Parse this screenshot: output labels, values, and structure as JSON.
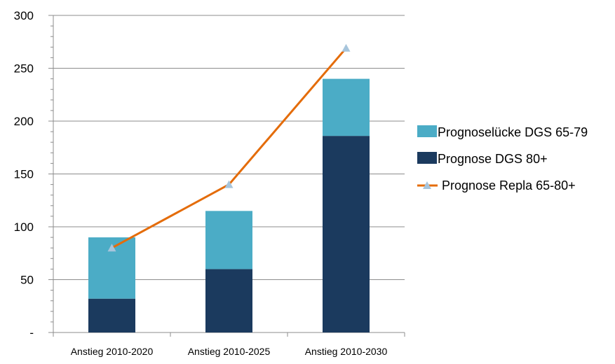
{
  "chart_data": {
    "type": "bar",
    "categories": [
      "Anstieg 2010-2020",
      "Anstieg 2010-2025",
      "Anstieg 2010-2030"
    ],
    "series": [
      {
        "name": "Prognose DGS 80+",
        "kind": "stacked-bar",
        "color": "#1b3a5e",
        "values": [
          32,
          60,
          186
        ]
      },
      {
        "name": "Prognoselücke DGS 65-79",
        "kind": "stacked-bar",
        "color": "#4bacc6",
        "values": [
          58,
          55,
          54
        ]
      },
      {
        "name": "Prognose Repla 65-80+",
        "kind": "line",
        "color": "#e46c0a",
        "marker_color": "#a7c5dc",
        "marker": "triangle",
        "values": [
          80,
          140,
          269
        ]
      }
    ],
    "legend_order": [
      "Prognoselücke DGS 65-79",
      "Prognose DGS 80+",
      "Prognose Repla 65-80+"
    ],
    "yticks": [
      0,
      50,
      100,
      150,
      200,
      250,
      300
    ],
    "ytick_labels": [
      "-",
      "50",
      "100",
      "150",
      "200",
      "250",
      "300"
    ],
    "ylim": [
      0,
      300
    ],
    "grid": true,
    "legend_position": "right",
    "title": "",
    "xlabel": "",
    "ylabel": ""
  }
}
